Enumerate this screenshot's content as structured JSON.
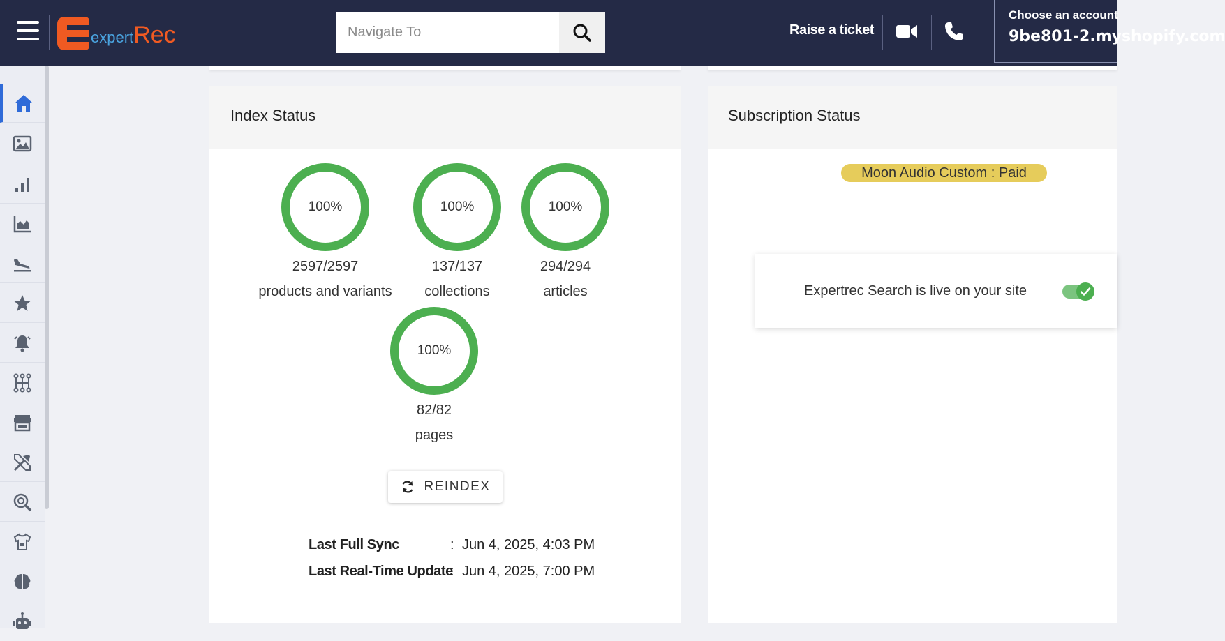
{
  "header": {
    "logo_prefix": "expert",
    "logo_suffix": "Rec",
    "search_placeholder": "Navigate To",
    "raise_ticket": "Raise a ticket",
    "account_label": "Choose an account",
    "account_value": "9be801-2.myshopify.com"
  },
  "sidebar": {
    "items": [
      "home-icon",
      "image-icon",
      "bar-chart-icon",
      "area-chart-icon",
      "plane-landing-icon",
      "star-icon",
      "bell-icon",
      "sitemap-icon",
      "store-icon",
      "tools-icon",
      "search-magnifier-icon",
      "tshirt-icon",
      "brain-icon",
      "robot-icon"
    ]
  },
  "index_status": {
    "title": "Index Status",
    "items": [
      {
        "percent": "100%",
        "count": "2597/2597",
        "label": "products and variants"
      },
      {
        "percent": "100%",
        "count": "137/137",
        "label": "collections"
      },
      {
        "percent": "100%",
        "count": "294/294",
        "label": "articles"
      },
      {
        "percent": "100%",
        "count": "82/82",
        "label": "pages"
      }
    ],
    "reindex_label": "REINDEX",
    "last_full_sync_label": "Last Full Sync",
    "last_full_sync_value": "Jun 4, 2025, 4:03 PM",
    "last_realtime_label": "Last Real-Time Update",
    "last_realtime_value": "Jun 4, 2025, 7:00 PM",
    "separator": ":"
  },
  "subscription_status": {
    "title": "Subscription Status",
    "plan_badge": "Moon Audio Custom : Paid",
    "live_text": "Expertrec Search is live on your site",
    "live_enabled": true
  },
  "colors": {
    "header_bg": "#242a46",
    "accent_orange": "#f05a22",
    "accent_blue": "#4aa3df",
    "ring_green": "#4caf50",
    "badge_yellow": "#e6cc5b",
    "active_blue": "#2f6bd8"
  }
}
